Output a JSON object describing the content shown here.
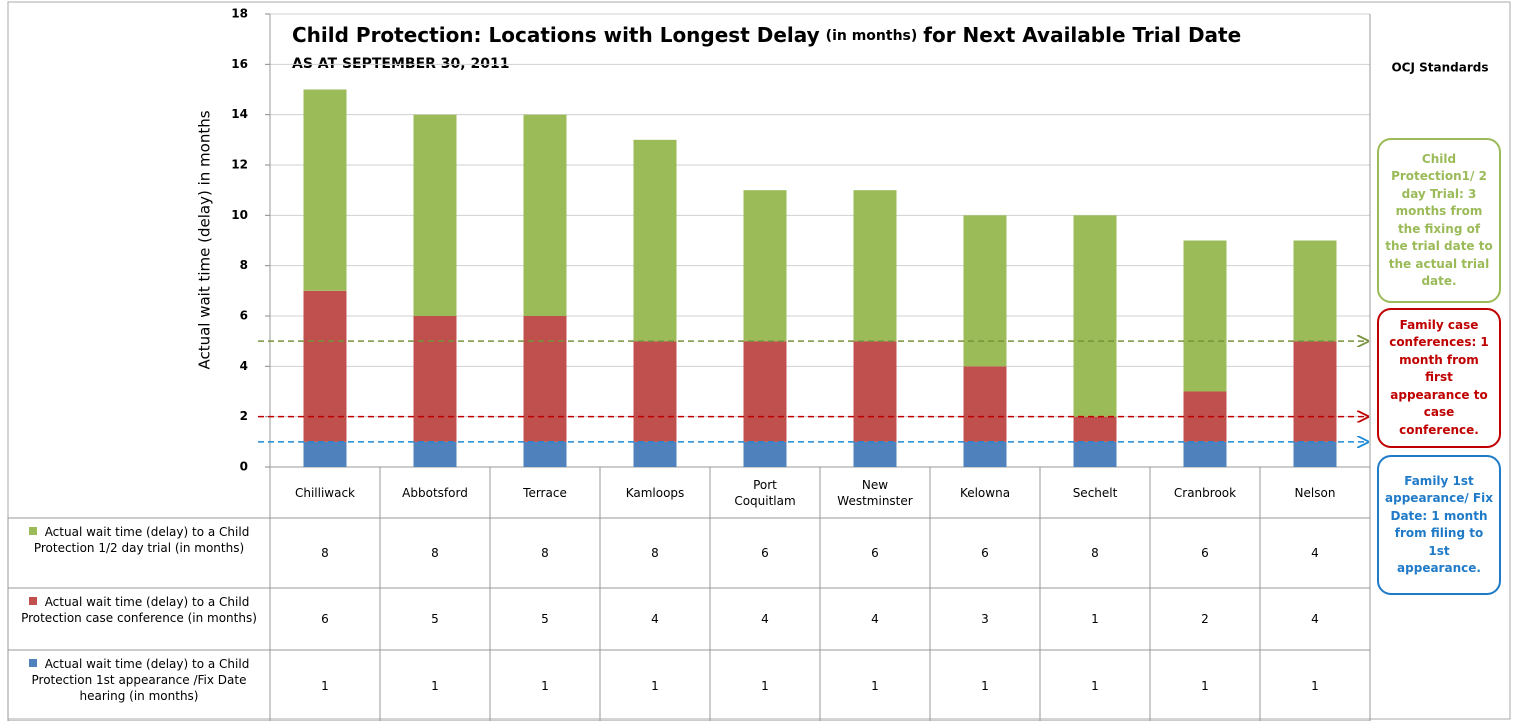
{
  "chart_data": {
    "type": "stacked_bar",
    "title": {
      "main": "Child Protection: Locations with Longest Delay",
      "note": "(in months)",
      "rest": "for Next Available Trial Date"
    },
    "subtitle": "AS AT SEPTEMBER 30, 2011",
    "y_label": "Actual wait time (delay) in months",
    "categories": [
      "Chilliwack",
      "Abbotsford",
      "Terrace",
      "Kamloops",
      "Port Coquitlam",
      "New Westminster",
      "Kelowna",
      "Sechelt",
      "Cranbrook",
      "Nelson"
    ],
    "series": [
      {
        "name": "Actual wait time (delay) to a Child Protection 1st appearance /Fix Date hearing (in months)",
        "color": "#4f81bd",
        "values": [
          1,
          1,
          1,
          1,
          1,
          1,
          1,
          1,
          1,
          1
        ]
      },
      {
        "name": "Actual wait time (delay) to a Child Protection case conference (in months)",
        "color": "#c0504d",
        "values": [
          6,
          5,
          5,
          4,
          4,
          4,
          3,
          1,
          2,
          4
        ]
      },
      {
        "name": "Actual wait time (delay) to a Child Protection 1/2 day trial (in months)",
        "color": "#9bbb59",
        "values": [
          8,
          8,
          8,
          8,
          6,
          6,
          6,
          8,
          6,
          4
        ]
      }
    ],
    "ylim": [
      0,
      18
    ],
    "yticks": [
      0,
      2,
      4,
      6,
      8,
      10,
      12,
      14,
      16,
      18
    ],
    "grid": true,
    "reference_lines": [
      {
        "value": 5,
        "color": "#77933c"
      },
      {
        "value": 2,
        "color": "#c00000"
      },
      {
        "value": 1,
        "color": "#1f8ad8"
      }
    ],
    "standards": {
      "title": "OCJ Standards",
      "items": [
        {
          "text": "Child Protection1/ 2 day Trial: 3 months from the fixing of the trial date to the actual trial date.",
          "color": "#9bbb59"
        },
        {
          "text": "Family case conferences: 1 month from first appearance to case conference.",
          "color": "#c00000"
        },
        {
          "text": "Family 1st appearance/ Fix Date: 1 month from filing to 1st appearance.",
          "color": "#1f7ac8"
        }
      ]
    }
  }
}
